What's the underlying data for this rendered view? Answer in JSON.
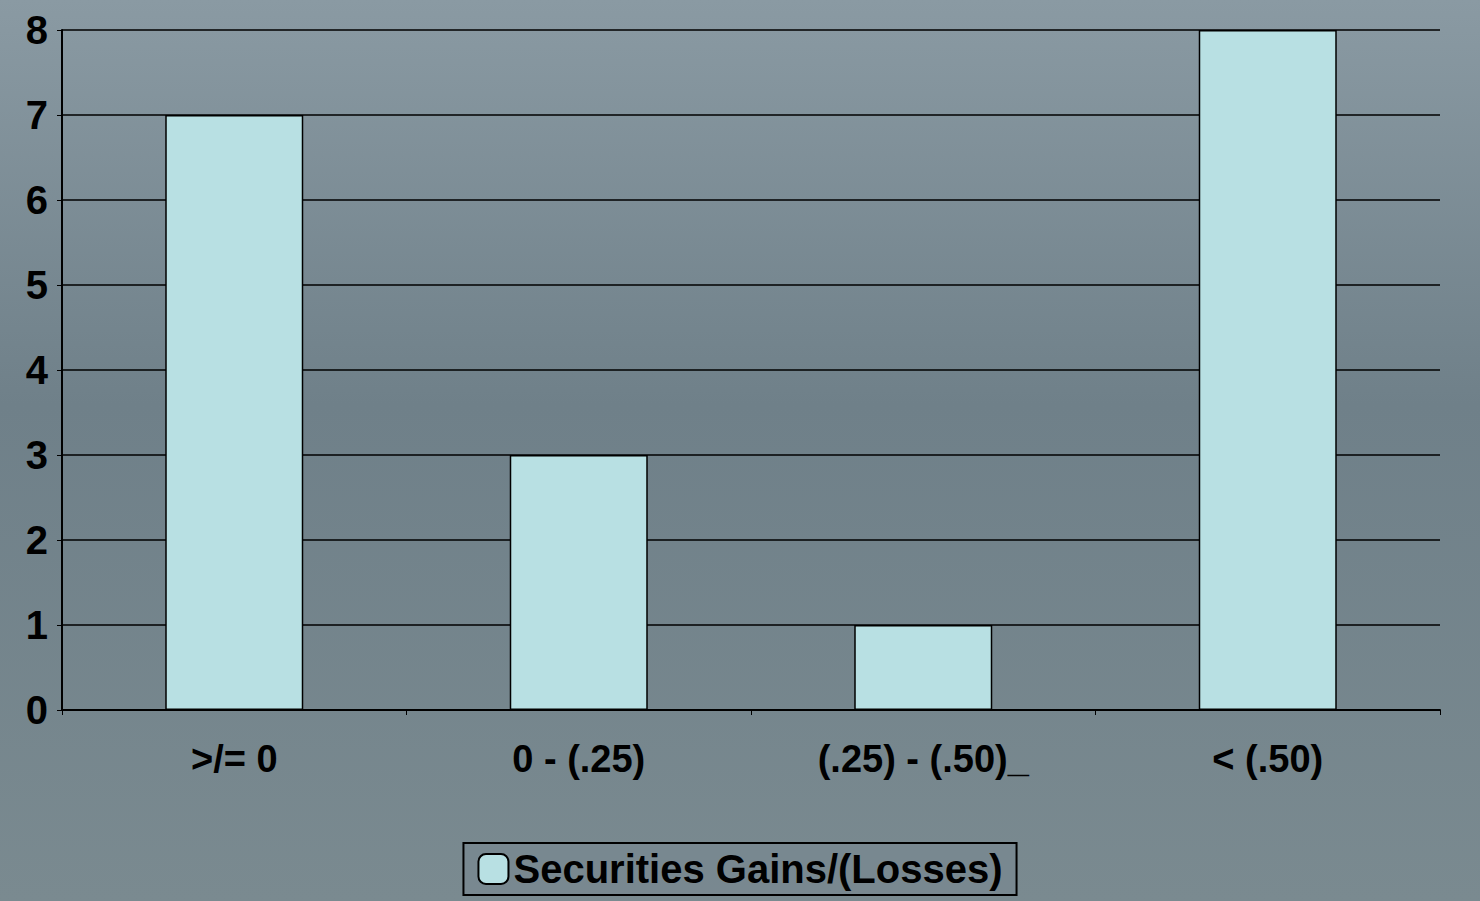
{
  "chart_data": {
    "type": "bar",
    "categories": [
      ">/= 0",
      "0 - (.25)",
      "(.25) - (.50)_",
      "< (.50)"
    ],
    "series": [
      {
        "name": "Securities Gains/(Losses)",
        "color": "#b8e0e3",
        "values": [
          7,
          3,
          1,
          8
        ]
      }
    ],
    "ylim": [
      0,
      8
    ],
    "yticks": [
      0,
      1,
      2,
      3,
      4,
      5,
      6,
      7,
      8
    ],
    "grid": true,
    "legend": "bottom"
  }
}
